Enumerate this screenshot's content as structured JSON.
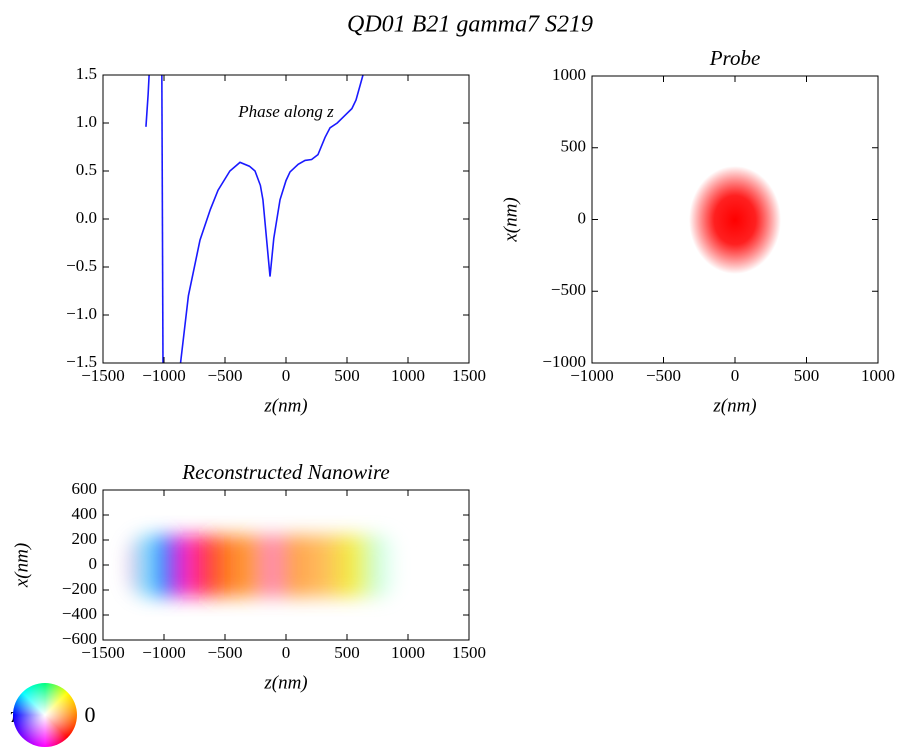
{
  "suptitle": "QD01 B21 gamma7 S219",
  "colorwheel": {
    "left": "π",
    "right": "0"
  },
  "chart_data": [
    {
      "type": "line",
      "annotation": "Phase along z",
      "xlabel": "z(nm)",
      "x": [
        -1148,
        -1130,
        -1118,
        -1080,
        -1018,
        -1008,
        -900,
        -869,
        -800,
        -705,
        -620,
        -557,
        -460,
        -377,
        -300,
        -254,
        -210,
        -189,
        -160,
        -131,
        -100,
        -49,
        0,
        33,
        100,
        156,
        210,
        262,
        320,
        361,
        420,
        484,
        540,
        574,
        631
      ],
      "series": [
        {
          "color": "#1a1aff",
          "values": [
            0.96,
            1.3,
            1.6,
            null,
            1.6,
            -1.6,
            null,
            -1.55,
            -0.8,
            -0.22,
            0.1,
            0.3,
            0.5,
            0.59,
            0.55,
            0.5,
            0.35,
            0.2,
            -0.2,
            -0.6,
            -0.2,
            0.2,
            0.4,
            0.49,
            0.57,
            0.61,
            0.62,
            0.67,
            0.85,
            0.95,
            1.0,
            1.08,
            1.15,
            1.24,
            1.5
          ]
        }
      ],
      "xlim": [
        -1500,
        1500
      ],
      "ylim": [
        -1.5,
        1.5
      ],
      "xticks": [
        {
          "value": -1500,
          "label": "−1500"
        },
        {
          "value": -1000,
          "label": "−1000"
        },
        {
          "value": -500,
          "label": "−500"
        },
        0,
        500,
        1000,
        1500
      ],
      "yticks": [
        {
          "value": -1.5,
          "label": "−1.5"
        },
        {
          "value": -1,
          "label": "−1.0"
        },
        {
          "value": -0.5,
          "label": "−0.5"
        },
        {
          "value": 0,
          "label": "0.0"
        },
        0.5,
        {
          "value": 1,
          "label": "1.0"
        },
        1.5
      ]
    },
    {
      "type": "image",
      "title": "Probe",
      "xlabel": "z(nm)",
      "ylabel": "x(nm)",
      "xlim": [
        -1000,
        1000
      ],
      "ylim": [
        -1000,
        1000
      ],
      "xticks": [
        {
          "value": -1000,
          "label": "−1000"
        },
        {
          "value": -500,
          "label": "−500"
        },
        0,
        500,
        1000
      ],
      "yticks": [
        {
          "value": -1000,
          "label": "−1000"
        },
        {
          "value": -500,
          "label": "−500"
        },
        0,
        500,
        1000
      ]
    },
    {
      "type": "image",
      "title": "Reconstructed Nanowire",
      "xlabel": "z(nm)",
      "ylabel": "x(nm)",
      "xlim": [
        -1500,
        1500
      ],
      "ylim": [
        -600,
        600
      ],
      "xticks": [
        {
          "value": -1500,
          "label": "−1500"
        },
        {
          "value": -1000,
          "label": "−1000"
        },
        {
          "value": -500,
          "label": "−500"
        },
        0,
        500,
        1000,
        1500
      ],
      "yticks": [
        {
          "value": -600,
          "label": "−600"
        },
        {
          "value": -400,
          "label": "−400"
        },
        {
          "value": -200,
          "label": "−200"
        },
        0,
        200,
        400,
        600
      ]
    }
  ]
}
